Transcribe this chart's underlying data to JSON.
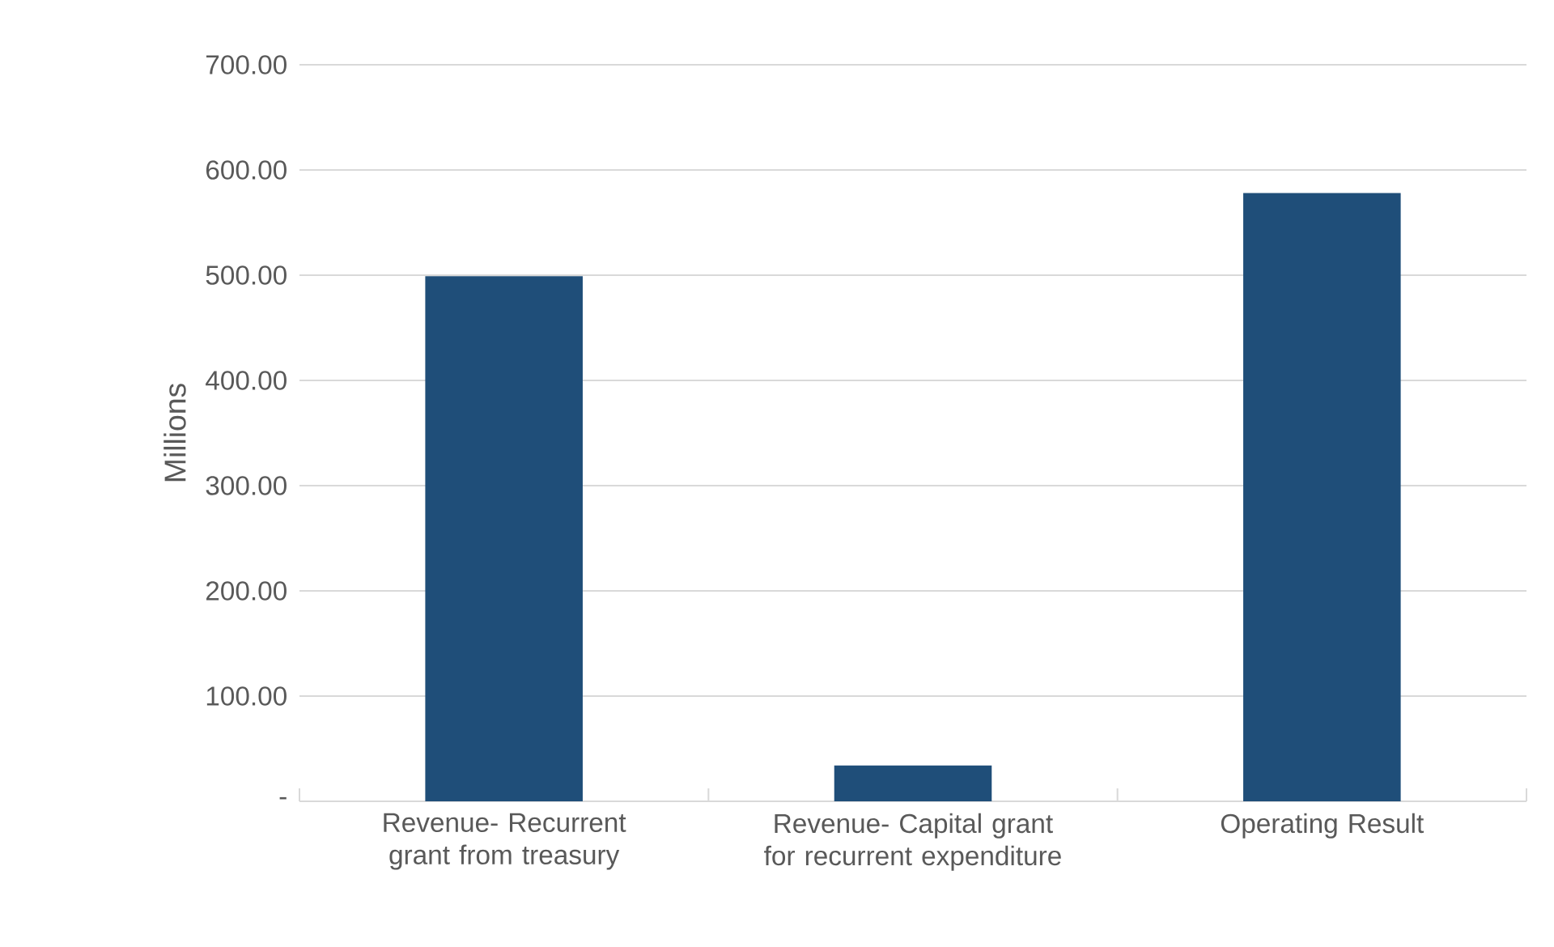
{
  "chart_data": {
    "type": "bar",
    "ylabel": "Millions",
    "categories": [
      "Revenue- Recurrent grant from treasury",
      "Revenue- Capital grant for recurrent expenditure",
      "Operating Result"
    ],
    "values": [
      499,
      34,
      578
    ],
    "color": "#1f4e79",
    "ylim": [
      0,
      700
    ],
    "yticks": [
      {
        "value": 0,
        "label": "-"
      },
      {
        "value": 100,
        "label": "100.00"
      },
      {
        "value": 200,
        "label": "200.00"
      },
      {
        "value": 300,
        "label": "300.00"
      },
      {
        "value": 400,
        "label": "400.00"
      },
      {
        "value": 500,
        "label": "500.00"
      },
      {
        "value": 600,
        "label": "600.00"
      },
      {
        "value": 700,
        "label": "700.00"
      }
    ],
    "grid": "y"
  }
}
